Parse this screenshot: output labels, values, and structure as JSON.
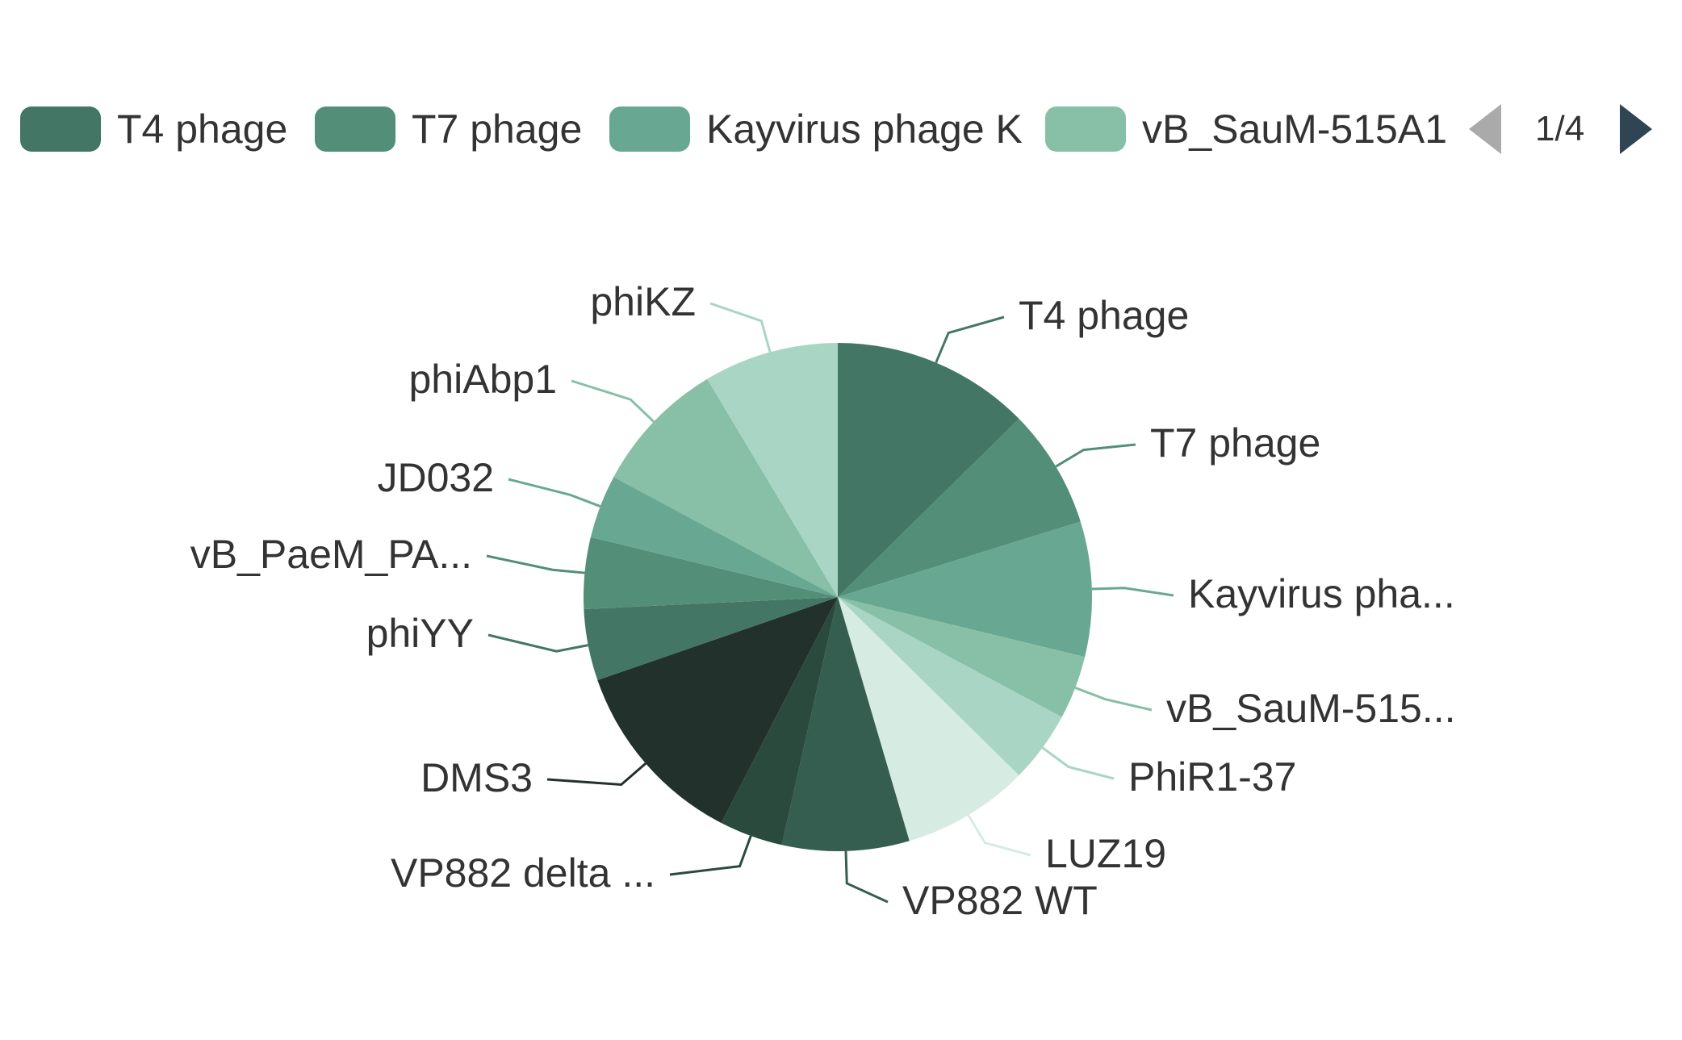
{
  "chart_data": {
    "type": "pie",
    "title": "",
    "slices": [
      {
        "name": "T4 phage",
        "label": "T4 phage",
        "value": 12.5,
        "color": "#437664"
      },
      {
        "name": "T7 phage",
        "label": "T7 phage",
        "value": 7.5,
        "color": "#528e78"
      },
      {
        "name": "Kayvirus phage K",
        "label": "Kayvirus pha...",
        "value": 8.5,
        "color": "#68a893"
      },
      {
        "name": "vB_SauM-515A1",
        "label": "vB_SauM-515...",
        "value": 4.0,
        "color": "#87bfa7"
      },
      {
        "name": "PhiR1-37",
        "label": "PhiR1-37",
        "value": 4.5,
        "color": "#a9d6c4"
      },
      {
        "name": "LUZ19",
        "label": "LUZ19",
        "value": 8.0,
        "color": "#d6ece3"
      },
      {
        "name": "VP882 WT",
        "label": "VP882 WT",
        "value": 8.0,
        "color": "#355e50"
      },
      {
        "name": "VP882 delta ...",
        "label": "VP882 delta ...",
        "value": 4.0,
        "color": "#2b4a3e"
      },
      {
        "name": "DMS3",
        "label": "DMS3",
        "value": 12.0,
        "color": "#22312b"
      },
      {
        "name": "phiYY",
        "label": "phiYY",
        "value": 4.5,
        "color": "#437664"
      },
      {
        "name": "vB_PaeM_PA...",
        "label": "vB_PaeM_PA...",
        "value": 4.5,
        "color": "#528e78"
      },
      {
        "name": "JD032",
        "label": "JD032",
        "value": 4.0,
        "color": "#68a893"
      },
      {
        "name": "phiAbp1",
        "label": "phiAbp1",
        "value": 8.5,
        "color": "#87bfa7"
      },
      {
        "name": "phiKZ",
        "label": "phiKZ",
        "value": 8.5,
        "color": "#a9d6c4"
      }
    ],
    "legend": {
      "position": "top",
      "items": [
        {
          "name": "T4 phage",
          "color": "#437664"
        },
        {
          "name": "T7 phage",
          "color": "#528e78"
        },
        {
          "name": "Kayvirus phage K",
          "color": "#68a893"
        },
        {
          "name": "vB_SauM-515A1",
          "color": "#87bfa7"
        }
      ],
      "page": "1/4"
    }
  }
}
